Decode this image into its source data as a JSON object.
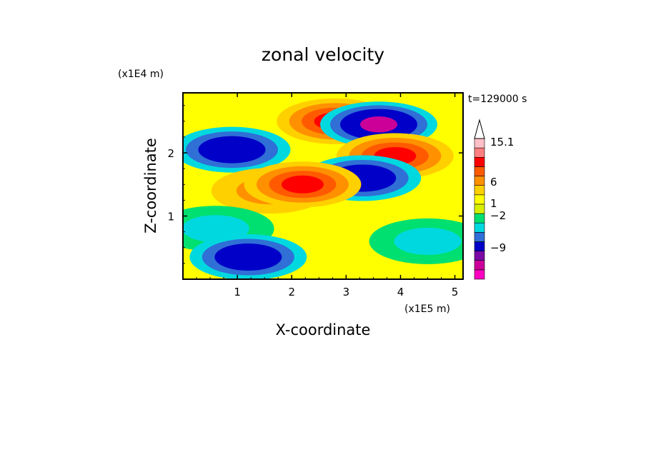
{
  "chart_data": {
    "type": "heatmap",
    "title": "zonal velocity",
    "xlabel": "X-coordinate",
    "ylabel": "Z-coordinate",
    "x_unit": "(x1E5 m)",
    "y_unit": "(x1E4 m)",
    "time_label": "t=129000 s",
    "xlim": [
      0,
      5.15
    ],
    "ylim": [
      0,
      2.95
    ],
    "x_ticks": [
      "1",
      "2",
      "3",
      "4",
      "5"
    ],
    "y_ticks": [
      "1",
      "2"
    ],
    "colorbar": {
      "labels": [
        "15.1",
        "6",
        "1",
        "-2",
        "-9"
      ],
      "colors": [
        "#ff00c0",
        "#cc0099",
        "#7a0aa6",
        "#0000c8",
        "#2f6fd6",
        "#00d8e0",
        "#00e070",
        "#d8f000",
        "#ffff00",
        "#ffd000",
        "#ff9000",
        "#ff5a00",
        "#ff0000",
        "#ff8080",
        "#ffc0c8"
      ]
    },
    "field_features": [
      {
        "x": 2.8,
        "z": 2.5,
        "value": 8
      },
      {
        "x": 3.6,
        "z": 2.45,
        "value": -11
      },
      {
        "x": 0.9,
        "z": 2.05,
        "value": -8
      },
      {
        "x": 3.9,
        "z": 1.95,
        "value": 8
      },
      {
        "x": 3.3,
        "z": 1.6,
        "value": -8
      },
      {
        "x": 1.6,
        "z": 1.4,
        "value": 3
      },
      {
        "x": 2.2,
        "z": 1.5,
        "value": 8
      },
      {
        "x": 0.6,
        "z": 0.8,
        "value": -3
      },
      {
        "x": 4.5,
        "z": 0.6,
        "value": -2
      },
      {
        "x": 1.2,
        "z": 0.35,
        "value": -8
      }
    ]
  }
}
